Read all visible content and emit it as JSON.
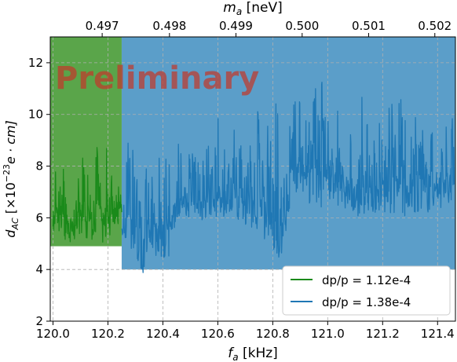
{
  "chart_data": {
    "type": "line",
    "title": "",
    "xlabel_main": "f",
    "xlabel_sub": "a",
    "xlabel_unit": " [kHz]",
    "ylabel_main": "d",
    "ylabel_sub": "AC",
    "ylabel_unit_pre": " [×10",
    "ylabel_exp": "−23",
    "ylabel_unit_post": "e · cm]",
    "top_label_main": "m",
    "top_label_sub": "a",
    "top_label_unit": " [neV]",
    "watermark": "Preliminary",
    "xlim": [
      119.99,
      121.465
    ],
    "ylim": [
      2,
      13
    ],
    "grid": true,
    "legend_position": "lower right",
    "x_ticks": [
      "120.0",
      "120.2",
      "120.4",
      "120.6",
      "120.8",
      "121.0",
      "121.2",
      "121.4"
    ],
    "x_tick_values": [
      120.0,
      120.2,
      120.4,
      120.6,
      120.8,
      121.0,
      121.2,
      121.4
    ],
    "y_ticks": [
      "2",
      "4",
      "6",
      "8",
      "10",
      "12"
    ],
    "y_tick_values": [
      2,
      4,
      6,
      8,
      10,
      12
    ],
    "top_ticks": [
      "0.497",
      "0.498",
      "0.499",
      "0.500",
      "0.501",
      "0.502"
    ],
    "top_tick_values": [
      0.497,
      0.498,
      0.499,
      0.5,
      0.501,
      0.502
    ],
    "top_tick_positions_kHz": [
      120.179,
      120.424,
      120.666,
      120.907,
      121.149,
      121.39
    ],
    "shaded_regions": [
      {
        "x": [
          119.99,
          120.25
        ],
        "color": "#5aa54a",
        "ylim": [
          4.9,
          13
        ]
      },
      {
        "x": [
          120.25,
          121.465
        ],
        "color": "#5b9ec9",
        "ylim": [
          4.0,
          13
        ]
      }
    ],
    "series": [
      {
        "name": "dp/p = 1.12e-4",
        "color": "#1a8a1a",
        "x": [
          120.0,
          120.02,
          120.04,
          120.06,
          120.08,
          120.1,
          120.12,
          120.14,
          120.16,
          120.18,
          120.2,
          120.22,
          120.25
        ],
        "y_min": [
          5.4,
          5.0,
          5.1,
          4.9,
          4.9,
          4.9,
          5.1,
          5.0,
          5.0,
          5.0,
          5.2,
          5.5,
          5.7
        ],
        "y_max": [
          7.8,
          8.5,
          8.4,
          9.2,
          8.0,
          10.0,
          8.5,
          8.5,
          9.0,
          9.5,
          8.6,
          7.9,
          7.6
        ]
      },
      {
        "name": "dp/p = 1.38e-4",
        "color": "#1f77b4",
        "x": [
          120.25,
          120.27,
          120.3,
          120.33,
          120.36,
          120.39,
          120.42,
          120.45,
          120.48,
          120.51,
          120.54,
          120.57,
          120.6,
          120.63,
          120.66,
          120.69,
          120.72,
          120.75,
          120.78,
          120.81,
          120.84,
          120.87,
          120.9,
          120.93,
          120.96,
          120.99,
          121.02,
          121.05,
          121.08,
          121.11,
          121.14,
          121.17,
          121.2,
          121.23,
          121.26,
          121.29,
          121.32,
          121.35,
          121.38,
          121.41,
          121.44,
          121.46
        ],
        "y_min": [
          5.0,
          4.5,
          4.4,
          3.8,
          4.3,
          4.4,
          4.4,
          6.0,
          6.0,
          6.0,
          5.9,
          6.0,
          6.0,
          5.9,
          6.0,
          5.8,
          5.6,
          5.5,
          5.0,
          4.0,
          4.8,
          6.8,
          7.0,
          6.5,
          6.3,
          6.4,
          6.5,
          6.3,
          6.4,
          6.0,
          6.2,
          6.2,
          6.0,
          6.2,
          6.2,
          6.0,
          6.2,
          6.1,
          6.2,
          6.0,
          6.2,
          6.4
        ],
        "y_max": [
          7.0,
          9.3,
          8.5,
          8.2,
          9.5,
          8.2,
          8.6,
          8.8,
          9.5,
          8.8,
          8.7,
          9.6,
          10.0,
          9.0,
          9.4,
          8.8,
          8.9,
          10.8,
          9.6,
          10.5,
          9.4,
          10.4,
          10.9,
          9.5,
          12.6,
          10.5,
          11.1,
          10.3,
          9.6,
          11.5,
          10.1,
          9.8,
          10.5,
          10.3,
          11.5,
          9.5,
          10.0,
          9.4,
          9.8,
          10.6,
          9.5,
          10.8
        ]
      }
    ]
  }
}
